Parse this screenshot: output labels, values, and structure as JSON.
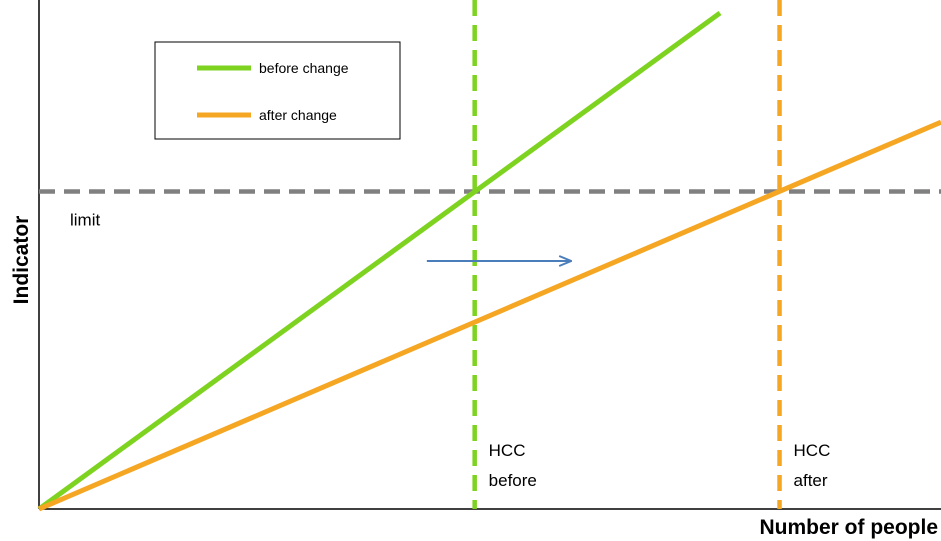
{
  "chart_data": {
    "type": "line",
    "title": "",
    "xlabel": "Number of people",
    "ylabel": "Indicator",
    "xlim": [
      0,
      10
    ],
    "ylim": [
      0,
      10
    ],
    "grid": false,
    "axis_ticks": false,
    "legend": {
      "placement": "top-left",
      "entries": [
        {
          "name": "before change",
          "color": "#7ed321"
        },
        {
          "name": "after change",
          "color": "#f5a623"
        }
      ]
    },
    "series": [
      {
        "name": "before change",
        "color": "#7ed321",
        "x": [
          0,
          7.55
        ],
        "y": [
          0,
          10
        ]
      },
      {
        "name": "after change",
        "color": "#f5a623",
        "x": [
          0,
          10
        ],
        "y": [
          0,
          7.8
        ]
      }
    ],
    "reference_lines": {
      "horizontal": [
        {
          "label": "limit",
          "y": 6.4,
          "color": "#808080"
        }
      ],
      "vertical": [
        {
          "label_line1": "HCC",
          "label_line2": "before",
          "x": 4.83,
          "color": "#7ed321"
        },
        {
          "label_line1": "HCC",
          "label_line2": "after",
          "x": 8.21,
          "color": "#f5a623"
        }
      ]
    },
    "arrow": {
      "from": [
        4.3,
        5.0
      ],
      "to": [
        5.9,
        5.0
      ],
      "color": "#4a7ebb"
    }
  }
}
